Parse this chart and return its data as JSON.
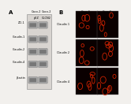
{
  "panel_A_label": "A",
  "panel_B_label": "B",
  "wb_col_labels": [
    "Caco-2\npEZ",
    "Caco-2\nCLCN2"
  ],
  "wb_row_labels": [
    "ZO-1",
    "Claudin-1",
    "Claudin-2",
    "Claudin-4",
    "β-actin"
  ],
  "icc_col_labels": [
    "Caco-2\npEZ",
    "Caco-2\nCLCN2"
  ],
  "icc_row_labels": [
    "Claudin 1",
    "Claudin 2",
    "Claudin 4"
  ],
  "bg_color": "#e8e4e0",
  "band_color": "#888888",
  "dark_band_color": "#555555",
  "cell_line_color": "#dark",
  "red_cell_color": "#cc2200",
  "black_bg": "#111111",
  "panel_bg": "#f2f0ed"
}
